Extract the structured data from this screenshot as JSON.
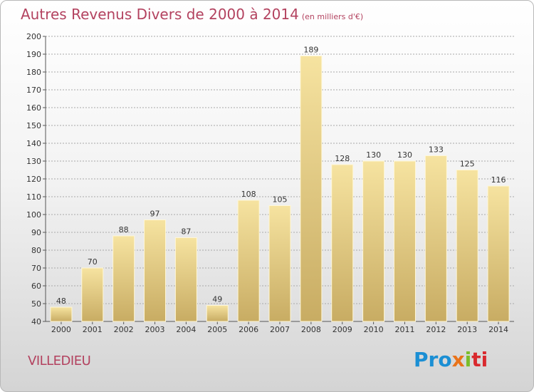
{
  "header": {
    "title": "Autres Revenus Divers de 2000 à 2014",
    "unit": "(en milliers d'€)"
  },
  "footer": {
    "commune": "VILLEDIEU",
    "brand_parts": [
      "Pro",
      "x",
      "i",
      "ti"
    ]
  },
  "colors": {
    "title": "#b3425f",
    "bar_light": "#f6e3a0",
    "bar_dark": "#c8ac63",
    "grid": "#a8a8a8"
  },
  "chart_data": {
    "type": "bar",
    "title": "Autres Revenus Divers de 2000 à 2014",
    "subtitle": "(en milliers d'€)",
    "xlabel": "",
    "ylabel": "",
    "categories": [
      "2000",
      "2001",
      "2002",
      "2003",
      "2004",
      "2005",
      "2006",
      "2007",
      "2008",
      "2009",
      "2010",
      "2011",
      "2012",
      "2013",
      "2014"
    ],
    "values": [
      48,
      70,
      88,
      97,
      87,
      49,
      108,
      105,
      189,
      128,
      130,
      130,
      133,
      125,
      116
    ],
    "ylim": [
      40,
      200
    ],
    "yticks": [
      40,
      50,
      60,
      70,
      80,
      90,
      100,
      110,
      120,
      130,
      140,
      150,
      160,
      170,
      180,
      190,
      200
    ],
    "grid": true,
    "data_labels": true
  }
}
